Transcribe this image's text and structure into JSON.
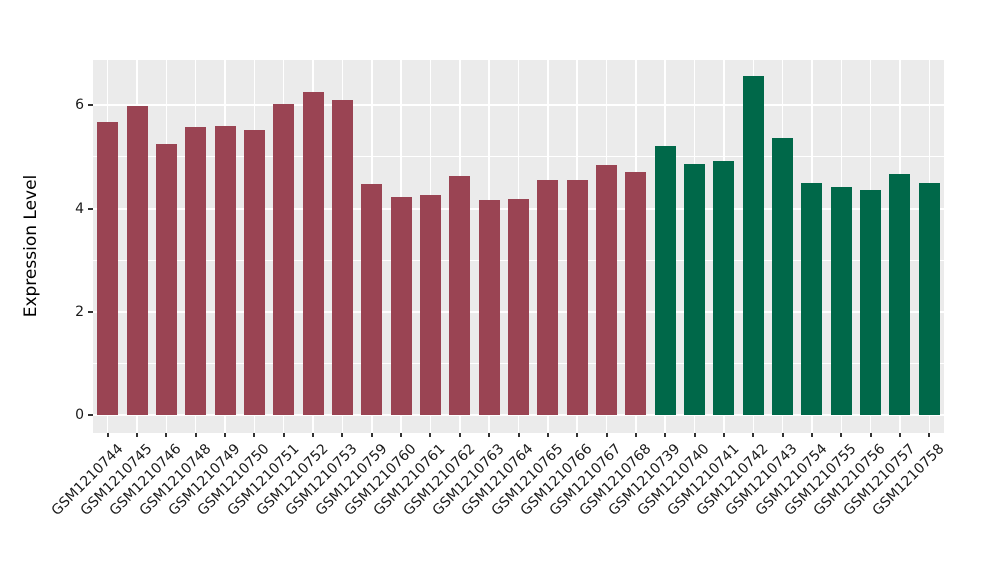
{
  "figure": {
    "background_color": "#FFFFFF",
    "panel_background_color": "#EBEBEB",
    "gridline_color": "#FFFFFF",
    "tick_mark_color": "#333333",
    "axis_text_color": "#1A1A1A",
    "axis_title_color": "#000000"
  },
  "chart_data": {
    "type": "bar",
    "title": "",
    "xlabel": "",
    "ylabel": "Expression Level",
    "yticks": [
      0,
      2,
      4,
      6
    ],
    "minor_gridlines": [
      1,
      3,
      5
    ],
    "ylim": [
      -0.35,
      6.88
    ],
    "grid": "on",
    "legend_position": "none",
    "x_tick_rotation_deg": 45,
    "group_colors": {
      "group_a": "#9A4453",
      "group_b": "#006849"
    },
    "bars": [
      {
        "label": "GSM1210744",
        "value": 5.67,
        "group": "group_a"
      },
      {
        "label": "GSM1210745",
        "value": 5.99,
        "group": "group_a"
      },
      {
        "label": "GSM1210746",
        "value": 5.25,
        "group": "group_a"
      },
      {
        "label": "GSM1210748",
        "value": 5.59,
        "group": "group_a"
      },
      {
        "label": "GSM1210749",
        "value": 5.61,
        "group": "group_a"
      },
      {
        "label": "GSM1210750",
        "value": 5.53,
        "group": "group_a"
      },
      {
        "label": "GSM1210751",
        "value": 6.02,
        "group": "group_a"
      },
      {
        "label": "GSM1210752",
        "value": 6.26,
        "group": "group_a"
      },
      {
        "label": "GSM1210753",
        "value": 6.11,
        "group": "group_a"
      },
      {
        "label": "GSM1210759",
        "value": 4.48,
        "group": "group_a"
      },
      {
        "label": "GSM1210760",
        "value": 4.22,
        "group": "group_a"
      },
      {
        "label": "GSM1210761",
        "value": 4.27,
        "group": "group_a"
      },
      {
        "label": "GSM1210762",
        "value": 4.64,
        "group": "group_a"
      },
      {
        "label": "GSM1210763",
        "value": 4.16,
        "group": "group_a"
      },
      {
        "label": "GSM1210764",
        "value": 4.18,
        "group": "group_a"
      },
      {
        "label": "GSM1210765",
        "value": 4.56,
        "group": "group_a"
      },
      {
        "label": "GSM1210766",
        "value": 4.56,
        "group": "group_a"
      },
      {
        "label": "GSM1210767",
        "value": 4.84,
        "group": "group_a"
      },
      {
        "label": "GSM1210768",
        "value": 4.71,
        "group": "group_a"
      },
      {
        "label": "GSM1210739",
        "value": 5.21,
        "group": "group_b"
      },
      {
        "label": "GSM1210740",
        "value": 4.87,
        "group": "group_b"
      },
      {
        "label": "GSM1210741",
        "value": 4.93,
        "group": "group_b"
      },
      {
        "label": "GSM1210742",
        "value": 6.57,
        "group": "group_b"
      },
      {
        "label": "GSM1210743",
        "value": 5.36,
        "group": "group_b"
      },
      {
        "label": "GSM1210754",
        "value": 4.5,
        "group": "group_b"
      },
      {
        "label": "GSM1210755",
        "value": 4.41,
        "group": "group_b"
      },
      {
        "label": "GSM1210756",
        "value": 4.36,
        "group": "group_b"
      },
      {
        "label": "GSM1210757",
        "value": 4.67,
        "group": "group_b"
      },
      {
        "label": "GSM1210758",
        "value": 4.5,
        "group": "group_b"
      }
    ]
  }
}
